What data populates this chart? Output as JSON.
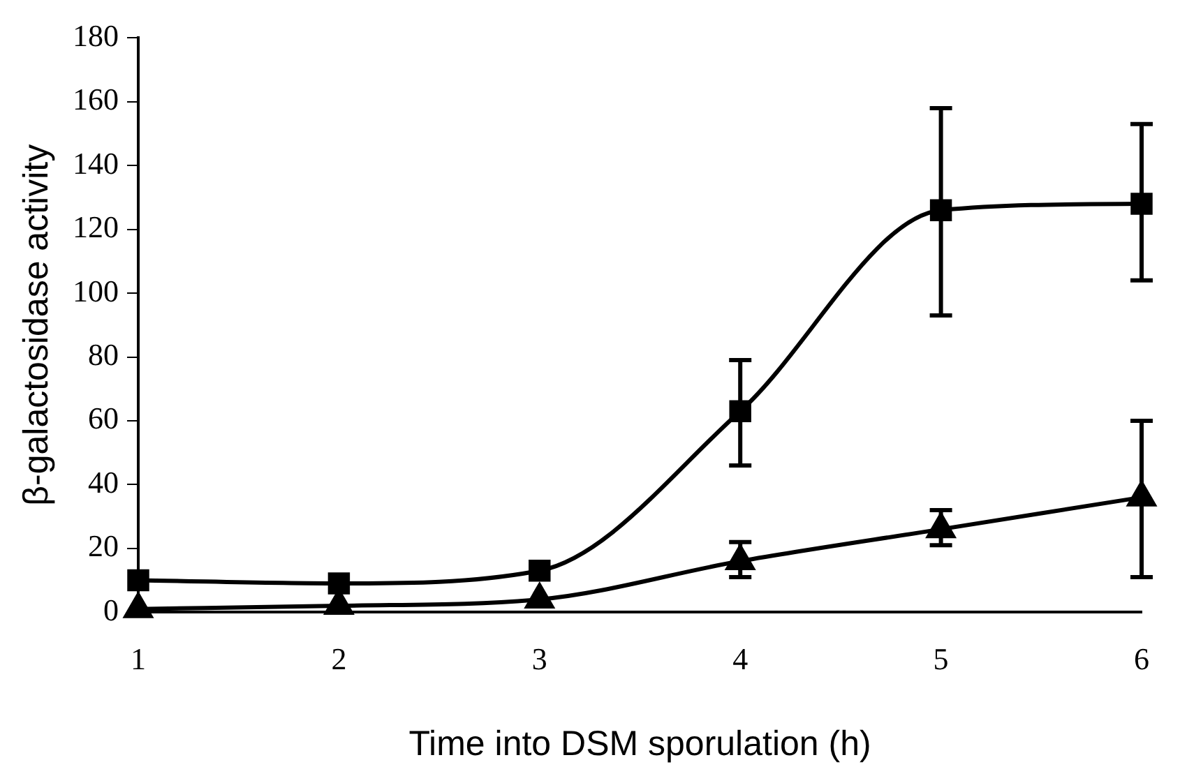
{
  "chart_data": {
    "type": "line",
    "xlabel": "Time into DSM sporulation (h)",
    "ylabel": "β-galactosidase activity",
    "x": [
      1,
      2,
      3,
      4,
      5,
      6
    ],
    "series": [
      {
        "color": "#000000",
        "marker": "square",
        "values": [
          10,
          9,
          13,
          63,
          126,
          128
        ],
        "errors": [
          null,
          null,
          null,
          [
            46,
            79
          ],
          [
            93,
            158
          ],
          [
            104,
            153
          ]
        ]
      },
      {
        "color": "#000000",
        "marker": "triangle",
        "values": [
          1,
          2,
          4,
          16,
          26,
          36
        ],
        "errors": [
          null,
          null,
          null,
          [
            11,
            22
          ],
          [
            21,
            32
          ],
          [
            11,
            60
          ]
        ]
      }
    ],
    "xlim": [
      1,
      6
    ],
    "xticks": [
      1,
      2,
      3,
      4,
      5,
      6
    ],
    "ylim": [
      0,
      180
    ],
    "yticks": [
      0,
      20,
      40,
      60,
      80,
      100,
      120,
      140,
      160,
      180
    ],
    "grid": false,
    "legend": false,
    "line_style": "solid"
  }
}
